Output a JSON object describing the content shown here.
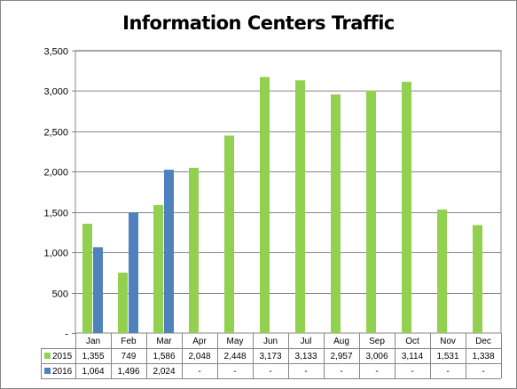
{
  "chart_data": {
    "type": "bar",
    "title": "Information Centers Traffic",
    "categories": [
      "Jan",
      "Feb",
      "Mar",
      "Apr",
      "May",
      "Jun",
      "Jul",
      "Aug",
      "Sep",
      "Oct",
      "Nov",
      "Dec"
    ],
    "series": [
      {
        "name": "2015",
        "color": "#92d050",
        "values": [
          1355,
          749,
          1586,
          2048,
          2448,
          3173,
          3133,
          2957,
          3006,
          3114,
          1531,
          1338
        ],
        "table_values": [
          "1,355",
          "749",
          "1,586",
          "2,048",
          "2,448",
          "3,173",
          "3,133",
          "2,957",
          "3,006",
          "3,114",
          "1,531",
          "1,338"
        ]
      },
      {
        "name": "2016",
        "color": "#4f81bd",
        "values": [
          1064,
          1496,
          2024,
          null,
          null,
          null,
          null,
          null,
          null,
          null,
          null,
          null
        ],
        "table_values": [
          "1,064",
          "1,496",
          "2,024",
          "-",
          "-",
          "-",
          "-",
          "-",
          "-",
          "-",
          "-",
          "-"
        ]
      }
    ],
    "ylim": [
      0,
      3500
    ],
    "yticks": [
      {
        "value": 0,
        "label": "-"
      },
      {
        "value": 500,
        "label": "500"
      },
      {
        "value": 1000,
        "label": "1,000"
      },
      {
        "value": 1500,
        "label": "1,500"
      },
      {
        "value": 2000,
        "label": "2,000"
      },
      {
        "value": 2500,
        "label": "2,500"
      },
      {
        "value": 3000,
        "label": "3,000"
      },
      {
        "value": 3500,
        "label": "3,500"
      }
    ],
    "grid": true,
    "legend": "data-table"
  }
}
